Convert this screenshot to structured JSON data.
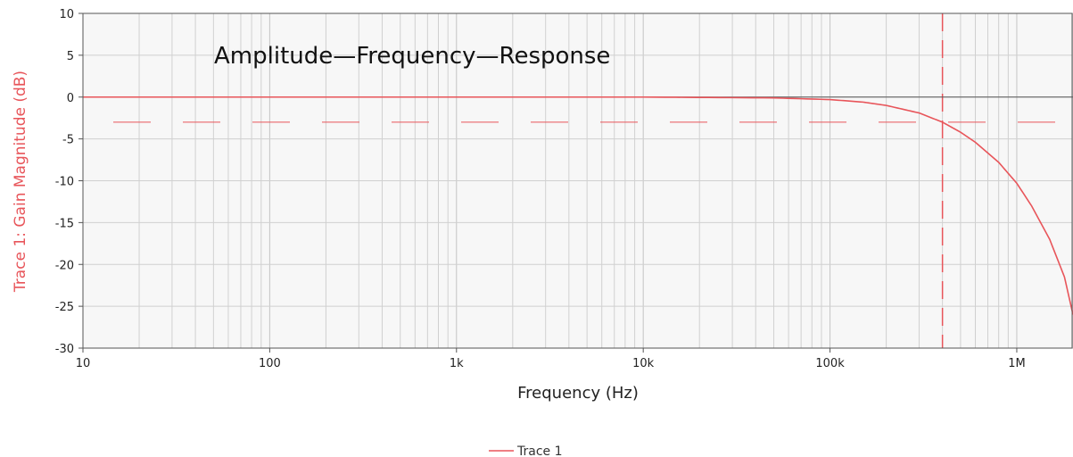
{
  "chart_data": {
    "type": "line",
    "title": "Amplitude—Frequency—Response",
    "xlabel": "Frequency (Hz)",
    "ylabel": "Trace 1: Gain Magnitude (dB)",
    "x_scale": "log",
    "xlim": [
      10,
      2000000
    ],
    "ylim": [
      -30,
      10
    ],
    "x_ticks": [
      {
        "value": 10,
        "label": "10"
      },
      {
        "value": 100,
        "label": "100"
      },
      {
        "value": 1000,
        "label": "1k"
      },
      {
        "value": 10000,
        "label": "10k"
      },
      {
        "value": 100000,
        "label": "100k"
      },
      {
        "value": 1000000,
        "label": "1M"
      }
    ],
    "y_ticks": [
      {
        "value": 10,
        "label": "10"
      },
      {
        "value": 5,
        "label": "5"
      },
      {
        "value": 0,
        "label": "0"
      },
      {
        "value": -5,
        "label": "-5"
      },
      {
        "value": -10,
        "label": "-10"
      },
      {
        "value": -15,
        "label": "-15"
      },
      {
        "value": -20,
        "label": "-20"
      },
      {
        "value": -25,
        "label": "-25"
      },
      {
        "value": -30,
        "label": "-30"
      }
    ],
    "grid": true,
    "legend_position": "bottom-center",
    "reference_lines": [
      {
        "orientation": "horizontal",
        "value": -3,
        "style": "dashed"
      },
      {
        "orientation": "vertical",
        "value": 400000,
        "style": "dashed"
      }
    ],
    "series": [
      {
        "name": "Trace 1",
        "color": "#e8555a",
        "x": [
          10,
          100,
          1000,
          10000,
          50000,
          100000,
          150000,
          200000,
          300000,
          400000,
          500000,
          600000,
          800000,
          1000000,
          1200000,
          1500000,
          1800000,
          2000000
        ],
        "y": [
          0,
          0,
          0,
          0,
          -0.1,
          -0.3,
          -0.6,
          -1.0,
          -1.9,
          -3.0,
          -4.2,
          -5.4,
          -7.8,
          -10.3,
          -13.0,
          -17.0,
          -21.5,
          -26.0
        ]
      }
    ]
  },
  "colors": {
    "trace": "#e8555a",
    "axis_label": "#e8555a",
    "grid": "#d0d0d0",
    "zero_line": "#555555",
    "plot_bg": "#f7f7f7"
  }
}
